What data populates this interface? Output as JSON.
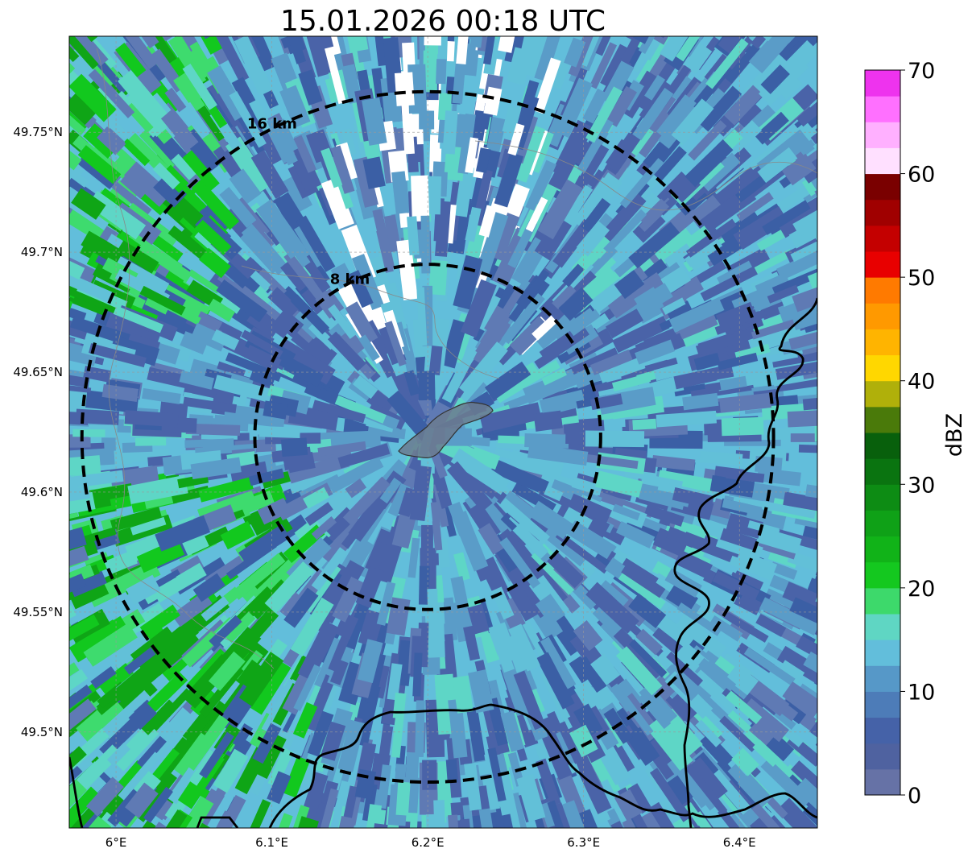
{
  "title": "15.01.2026 00:18 UTC",
  "map": {
    "lon_range": [
      5.97,
      6.45
    ],
    "lat_range": [
      49.46,
      49.79
    ],
    "center_lon": 6.2,
    "center_lat": 49.623,
    "x_ticks": [
      "6°E",
      "6.1°E",
      "6.2°E",
      "6.3°E",
      "6.4°E"
    ],
    "x_tick_values": [
      6.0,
      6.1,
      6.2,
      6.3,
      6.4
    ],
    "y_ticks": [
      "49.75°N",
      "49.7°N",
      "49.65°N",
      "49.6°N",
      "49.55°N",
      "49.5°N"
    ],
    "y_tick_values": [
      49.75,
      49.7,
      49.65,
      49.6,
      49.55,
      49.5
    ],
    "range_rings": [
      {
        "label": "8 km",
        "radius_km": 8
      },
      {
        "label": "16 km",
        "radius_km": 16
      }
    ],
    "reflectivity_palette": [
      "#ffffff",
      "#3fa9bf",
      "#4a63a8",
      "#5f7ab4",
      "#5a9cc8",
      "#62c0d8",
      "#5ed6c6",
      "#3edb6e",
      "#12c81e",
      "#0fa516",
      "#08780e",
      "#3b5fa5"
    ]
  },
  "colorbar": {
    "label": "dBZ",
    "ticks": [
      "0",
      "10",
      "20",
      "30",
      "40",
      "50",
      "60",
      "70"
    ],
    "tick_values": [
      0,
      10,
      20,
      30,
      40,
      50,
      60,
      70
    ],
    "step": 2.5,
    "colors": [
      "#6672a6",
      "#4f62a0",
      "#4562a8",
      "#4d7cb8",
      "#5698c8",
      "#62bedb",
      "#5fd6c3",
      "#3dd96b",
      "#14c81f",
      "#11b318",
      "#0fa117",
      "#0d8c14",
      "#0a7410",
      "#08600c",
      "#4a7a0a",
      "#b0b00a",
      "#ffd700",
      "#ffb400",
      "#ff9900",
      "#ff7a00",
      "#e80000",
      "#c40000",
      "#a00000",
      "#7a0000",
      "#ffe0ff",
      "#ffb0ff",
      "#ff70ff",
      "#ee33ee"
    ]
  }
}
